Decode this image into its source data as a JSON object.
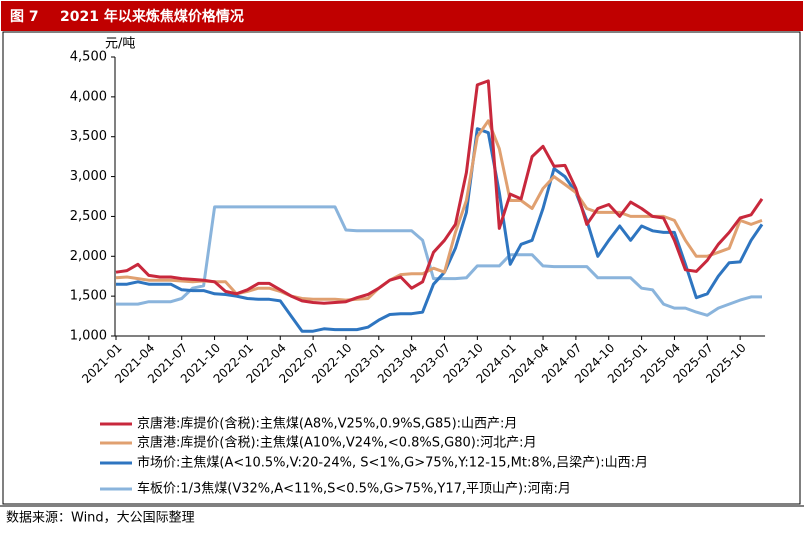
{
  "chart_data": {
    "type": "line",
    "figure_label": "图 7",
    "title": "2021 年以来炼焦煤价格情况",
    "y_unit": "元/吨",
    "source": "数据来源：Wind，大公国际整理",
    "categories": [
      "2021-01",
      null,
      null,
      "2021-04",
      null,
      null,
      "2021-07",
      null,
      null,
      "2021-10",
      null,
      null,
      "2022-01",
      null,
      null,
      "2022-04",
      null,
      null,
      "2022-07",
      null,
      null,
      "2022-10",
      null,
      null,
      "2023-01",
      null,
      null,
      "2023-04",
      null,
      null,
      "2023-07",
      null,
      null,
      "2023-10",
      null,
      null,
      "2024-01",
      null,
      null,
      "2024-04",
      null,
      null,
      "2024-07",
      null,
      null,
      "2024-10",
      null,
      null,
      "2025-01",
      null,
      null,
      "2025-04",
      null,
      null,
      "2025-07",
      null,
      null,
      "2025-10",
      null,
      null
    ],
    "ylim": [
      1000,
      4500
    ],
    "yticks": [
      {
        "value": 1000,
        "label": "1,000"
      },
      {
        "value": 1500,
        "label": "1,500"
      },
      {
        "value": 2000,
        "label": "2,000"
      },
      {
        "value": 2500,
        "label": "2,500"
      },
      {
        "value": 3000,
        "label": "3,000"
      },
      {
        "value": 3500,
        "label": "3,500"
      },
      {
        "value": 4000,
        "label": "4,000"
      },
      {
        "value": 4500,
        "label": "4,500"
      }
    ],
    "grid": false,
    "series": [
      {
        "name": "京唐港:库提价(含税):主焦煤(A8%,V25%,0.9%S,G85):山西产:月",
        "color": "#c8283c",
        "values": [
          1800,
          1820,
          1900,
          1760,
          1740,
          1740,
          1720,
          1710,
          1700,
          1680,
          1560,
          1530,
          1580,
          1660,
          1660,
          1580,
          1500,
          1440,
          1420,
          1410,
          1420,
          1430,
          1480,
          1520,
          1600,
          1700,
          1740,
          1600,
          1680,
          2050,
          2200,
          2400,
          3050,
          4150,
          4200,
          2350,
          2780,
          2720,
          3250,
          3380,
          3130,
          3140,
          2850,
          2400,
          2600,
          2650,
          2500,
          2680,
          2600,
          2500,
          2480,
          2200,
          1830,
          1810,
          1950,
          2150,
          2300,
          2480,
          2520,
          2720
        ]
      },
      {
        "name": "京唐港:库提价(含税):主焦煤(A10%,V24%,<0.8%S,G80):河北产:月",
        "color": "#e0a070",
        "values": [
          1730,
          1740,
          1720,
          1700,
          1700,
          1700,
          1690,
          1680,
          1690,
          1680,
          1680,
          1530,
          1560,
          1600,
          1600,
          1560,
          1500,
          1470,
          1460,
          1460,
          1460,
          1450,
          1460,
          1470,
          1600,
          1700,
          1770,
          1780,
          1780,
          1850,
          1800,
          2300,
          2700,
          3500,
          3700,
          3350,
          2700,
          2700,
          2600,
          2850,
          3000,
          2900,
          2800,
          2600,
          2550,
          2550,
          2550,
          2500,
          2500,
          2500,
          2500,
          2450,
          2200,
          2000,
          2000,
          2050,
          2100,
          2450,
          2400,
          2450
        ]
      },
      {
        "name": "市场价:主焦煤(A<10.5%,V:20-24%, S<1%,G>75%,Y:12-15,Mt:8%,吕梁产):山西:月",
        "color": "#2e75c0",
        "values": [
          1650,
          1650,
          1680,
          1650,
          1650,
          1650,
          1580,
          1570,
          1570,
          1530,
          1520,
          1500,
          1470,
          1460,
          1460,
          1440,
          1250,
          1060,
          1060,
          1090,
          1080,
          1080,
          1080,
          1110,
          1200,
          1270,
          1280,
          1280,
          1300,
          1650,
          1800,
          2100,
          2550,
          3600,
          3550,
          2800,
          1900,
          2150,
          2200,
          2600,
          3100,
          3000,
          2800,
          2450,
          2000,
          2200,
          2380,
          2200,
          2380,
          2320,
          2300,
          2300,
          1900,
          1480,
          1530,
          1750,
          1920,
          1930,
          2200,
          2400
        ]
      },
      {
        "name": "车板价:1/3焦煤(V32%,A<11%,S<0.5%,G>75%,Y17,平顶山产):河南:月",
        "color": "#8ab4dc",
        "values": [
          1400,
          1400,
          1400,
          1430,
          1430,
          1430,
          1470,
          1600,
          1630,
          2620,
          2620,
          2620,
          2620,
          2620,
          2620,
          2620,
          2620,
          2620,
          2620,
          2620,
          2620,
          2330,
          2320,
          2320,
          2320,
          2320,
          2320,
          2320,
          2200,
          1720,
          1720,
          1720,
          1730,
          1880,
          1880,
          1880,
          2020,
          2020,
          2020,
          1880,
          1870,
          1870,
          1870,
          1870,
          1730,
          1730,
          1730,
          1730,
          1600,
          1580,
          1400,
          1350,
          1350,
          1300,
          1260,
          1350,
          1400,
          1450,
          1490,
          1490
        ]
      }
    ]
  }
}
